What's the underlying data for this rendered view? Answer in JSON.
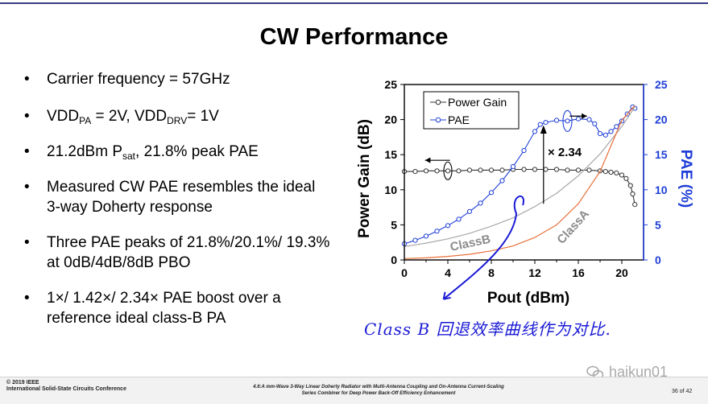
{
  "slide": {
    "title": "CW Performance",
    "bullets": {
      "b1": "Carrier frequency = 57GHz",
      "b2": {
        "t1": "VDD",
        "s1": "PA",
        "t2": " = 2V, VDD",
        "s2": "DRV",
        "t3": "= 1V"
      },
      "b3": {
        "t1": "21.2dBm P",
        "s1": "sat",
        "t2": ", 21.8% peak PAE"
      },
      "b4": "Measured CW PAE resembles the ideal 3-way Doherty response",
      "b5": "Three PAE peaks of 21.8%/20.1%/ 19.3% at 0dB/4dB/8dB PBO",
      "b6": "1×/ 1.42×/ 2.34× PAE boost over a reference ideal class-B PA"
    },
    "handwritten_note": "Class B 回退效率曲线作为对比.",
    "watermark": "haikun01"
  },
  "footer": {
    "left_line1": "© 2019 IEEE",
    "left_line2": "International Solid-State Circuits Conference",
    "center_line1": "4.6:A mm-Wave 3-Way Linear Doherty Radiator with Multi-Antenna Coupling and On-Antenna Current-Scaling",
    "center_line2": "Series Combiner for Deep Power Back-Off Efficiency Enhancement",
    "page": "36 of 42"
  },
  "chart_data": {
    "type": "line",
    "xlabel": "Pout (dBm)",
    "ylabel": "Power Gain (dB)",
    "y2label": "PAE (%)",
    "xlim": [
      0,
      22
    ],
    "ylim": [
      0,
      25
    ],
    "y2lim": [
      0,
      25
    ],
    "xticks": [
      "0",
      "4",
      "8",
      "12",
      "16",
      "20"
    ],
    "yticks": [
      "0",
      "5",
      "10",
      "15",
      "20",
      "25"
    ],
    "y2ticks": [
      "0",
      "5",
      "10",
      "15",
      "20",
      "25"
    ],
    "legend": [
      "Power Gain",
      "PAE"
    ],
    "legend_position": "top-left",
    "annotations": {
      "boost": "× 2.34",
      "classb": "ClassB",
      "classa": "ClassA"
    },
    "colors": {
      "gain": "#333333",
      "pae": "#1f3fd6",
      "classb": "#a8a8a8",
      "classa": "#e8703a",
      "y2axis": "#1f3fd6"
    },
    "series": [
      {
        "name": "Power Gain",
        "axis": "left",
        "x": [
          0,
          1,
          2,
          3,
          4,
          5,
          6,
          7,
          8,
          9,
          10,
          11,
          12,
          13,
          14,
          15,
          16,
          17,
          18,
          18.5,
          19,
          19.5,
          20,
          20.4,
          20.8,
          21,
          21.2
        ],
        "y": [
          12.6,
          12.6,
          12.7,
          12.7,
          12.7,
          12.7,
          12.8,
          12.8,
          12.8,
          12.8,
          12.9,
          12.9,
          12.9,
          12.9,
          12.9,
          12.8,
          12.8,
          12.8,
          12.7,
          12.6,
          12.5,
          12.4,
          12.1,
          11.6,
          10.6,
          9.4,
          7.9
        ]
      },
      {
        "name": "PAE",
        "axis": "right",
        "x": [
          0,
          1,
          2,
          3,
          4,
          5,
          6,
          7,
          8,
          9,
          10,
          11,
          12,
          12.5,
          13,
          14,
          15,
          16,
          17,
          17.5,
          18,
          18.5,
          19,
          19.5,
          20,
          20.5,
          21,
          21.2
        ],
        "y": [
          2.3,
          2.8,
          3.4,
          4.1,
          4.9,
          5.8,
          6.9,
          8.1,
          9.6,
          11.3,
          13.3,
          15.6,
          18.3,
          19.3,
          19.6,
          19.9,
          19.8,
          20.1,
          20.0,
          19.4,
          18.0,
          17.8,
          18.3,
          19.0,
          19.8,
          20.8,
          21.8,
          21.6
        ]
      },
      {
        "name": "ClassB",
        "axis": "right",
        "x": [
          0,
          2,
          4,
          6,
          8,
          10,
          12,
          14,
          16,
          18,
          20,
          21.2
        ],
        "y": [
          1.9,
          2.4,
          3.0,
          3.8,
          4.8,
          6.0,
          7.6,
          9.5,
          12.0,
          15.1,
          19.0,
          21.8
        ]
      },
      {
        "name": "ClassA",
        "axis": "right",
        "x": [
          0,
          2,
          4,
          6,
          8,
          10,
          12,
          14,
          16,
          18,
          20,
          21.2
        ],
        "y": [
          0.2,
          0.3,
          0.5,
          0.8,
          1.3,
          2.0,
          3.2,
          5.0,
          8.0,
          12.6,
          19.9,
          22.0
        ]
      }
    ]
  }
}
